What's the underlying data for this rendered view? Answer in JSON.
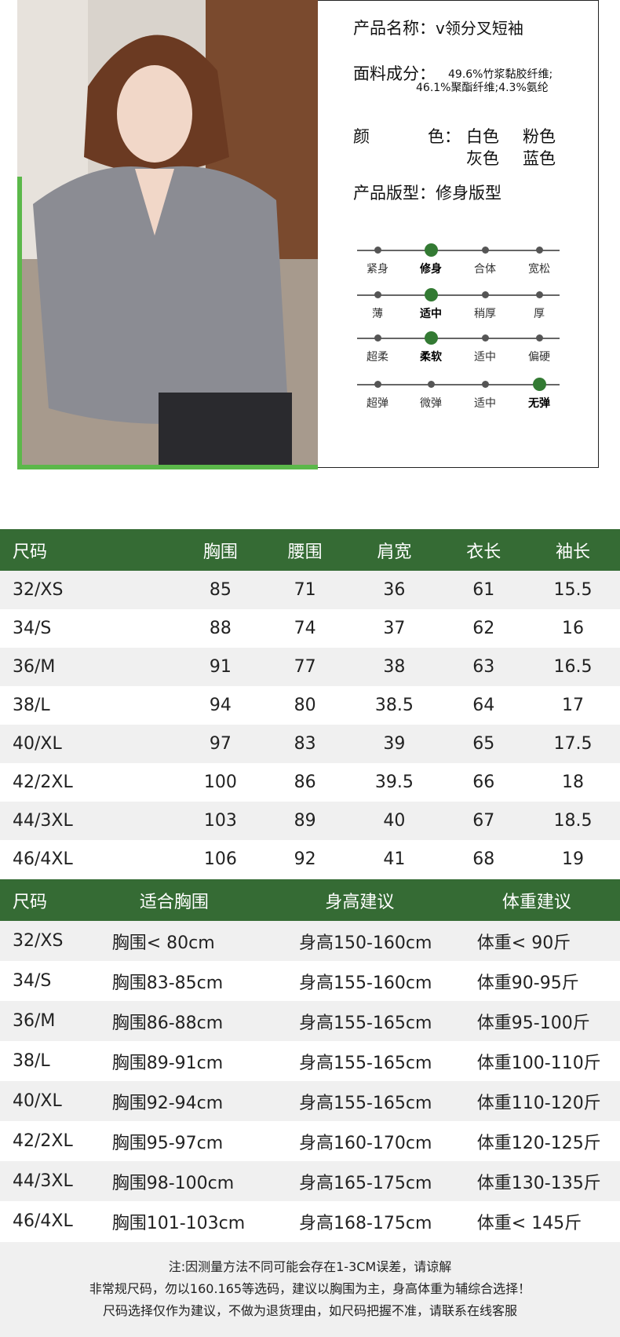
{
  "product": {
    "name_label": "产品名称：",
    "name_value": "v领分叉短袖",
    "fabric_label": "面料成分：",
    "fabric_line1": "49.6%竹浆黏胶纤维;",
    "fabric_line2": "46.1%聚酯纤维;4.3%氨纶",
    "color_label_1": "颜",
    "color_label_2": "色：",
    "colors": [
      "白色",
      "粉色",
      "灰色",
      "蓝色"
    ],
    "fit_label": "产品版型：",
    "fit_value": "修身版型"
  },
  "scales": [
    {
      "options": [
        "紧身",
        "修身",
        "合体",
        "宽松"
      ],
      "selected": 1
    },
    {
      "options": [
        "薄",
        "适中",
        "稍厚",
        "厚"
      ],
      "selected": 1
    },
    {
      "options": [
        "超柔",
        "柔软",
        "适中",
        "偏硬"
      ],
      "selected": 1
    },
    {
      "options": [
        "超弹",
        "微弹",
        "适中",
        "无弹"
      ],
      "selected": 3
    }
  ],
  "colors": {
    "accent": "#356b34",
    "frame": "#5bb84a"
  },
  "size_table": {
    "headers": [
      "尺码",
      "胸围",
      "腰围",
      "肩宽",
      "衣长",
      "袖长"
    ],
    "rows": [
      [
        "32/XS",
        "85",
        "71",
        "36",
        "61",
        "15.5"
      ],
      [
        "34/S",
        "88",
        "74",
        "37",
        "62",
        "16"
      ],
      [
        "36/M",
        "91",
        "77",
        "38",
        "63",
        "16.5"
      ],
      [
        "38/L",
        "94",
        "80",
        "38.5",
        "64",
        "17"
      ],
      [
        "40/XL",
        "97",
        "83",
        "39",
        "65",
        "17.5"
      ],
      [
        "42/2XL",
        "100",
        "86",
        "39.5",
        "66",
        "18"
      ],
      [
        "44/3XL",
        "103",
        "89",
        "40",
        "67",
        "18.5"
      ],
      [
        "46/4XL",
        "106",
        "92",
        "41",
        "68",
        "19"
      ]
    ]
  },
  "recommend_table": {
    "headers": [
      "尺码",
      "适合胸围",
      "身高建议",
      "体重建议"
    ],
    "rows": [
      [
        "32/XS",
        "胸围< 80cm",
        "身高150-160cm",
        "体重< 90斤"
      ],
      [
        "34/S",
        "胸围83-85cm",
        "身高155-160cm",
        "体重90-95斤"
      ],
      [
        "36/M",
        "胸围86-88cm",
        "身高155-165cm",
        "体重95-100斤"
      ],
      [
        "38/L",
        "胸围89-91cm",
        "身高155-165cm",
        "体重100-110斤"
      ],
      [
        "40/XL",
        "胸围92-94cm",
        "身高155-165cm",
        "体重110-120斤"
      ],
      [
        "42/2XL",
        "胸围95-97cm",
        "身高160-170cm",
        "体重120-125斤"
      ],
      [
        "44/3XL",
        "胸围98-100cm",
        "身高165-175cm",
        "体重130-135斤"
      ],
      [
        "46/4XL",
        "胸围101-103cm",
        "身高168-175cm",
        "体重< 145斤"
      ]
    ]
  },
  "footer": {
    "line1": "注:因测量方法不同可能会存在1-3CM误差，请谅解",
    "line2": "非常规尺码，勿以160.165等选码，建议以胸围为主，身高体重为辅综合选择！",
    "line3": "尺码选择仅作为建议，不做为退货理由，如尺码把握不准，请联系在线客服"
  }
}
